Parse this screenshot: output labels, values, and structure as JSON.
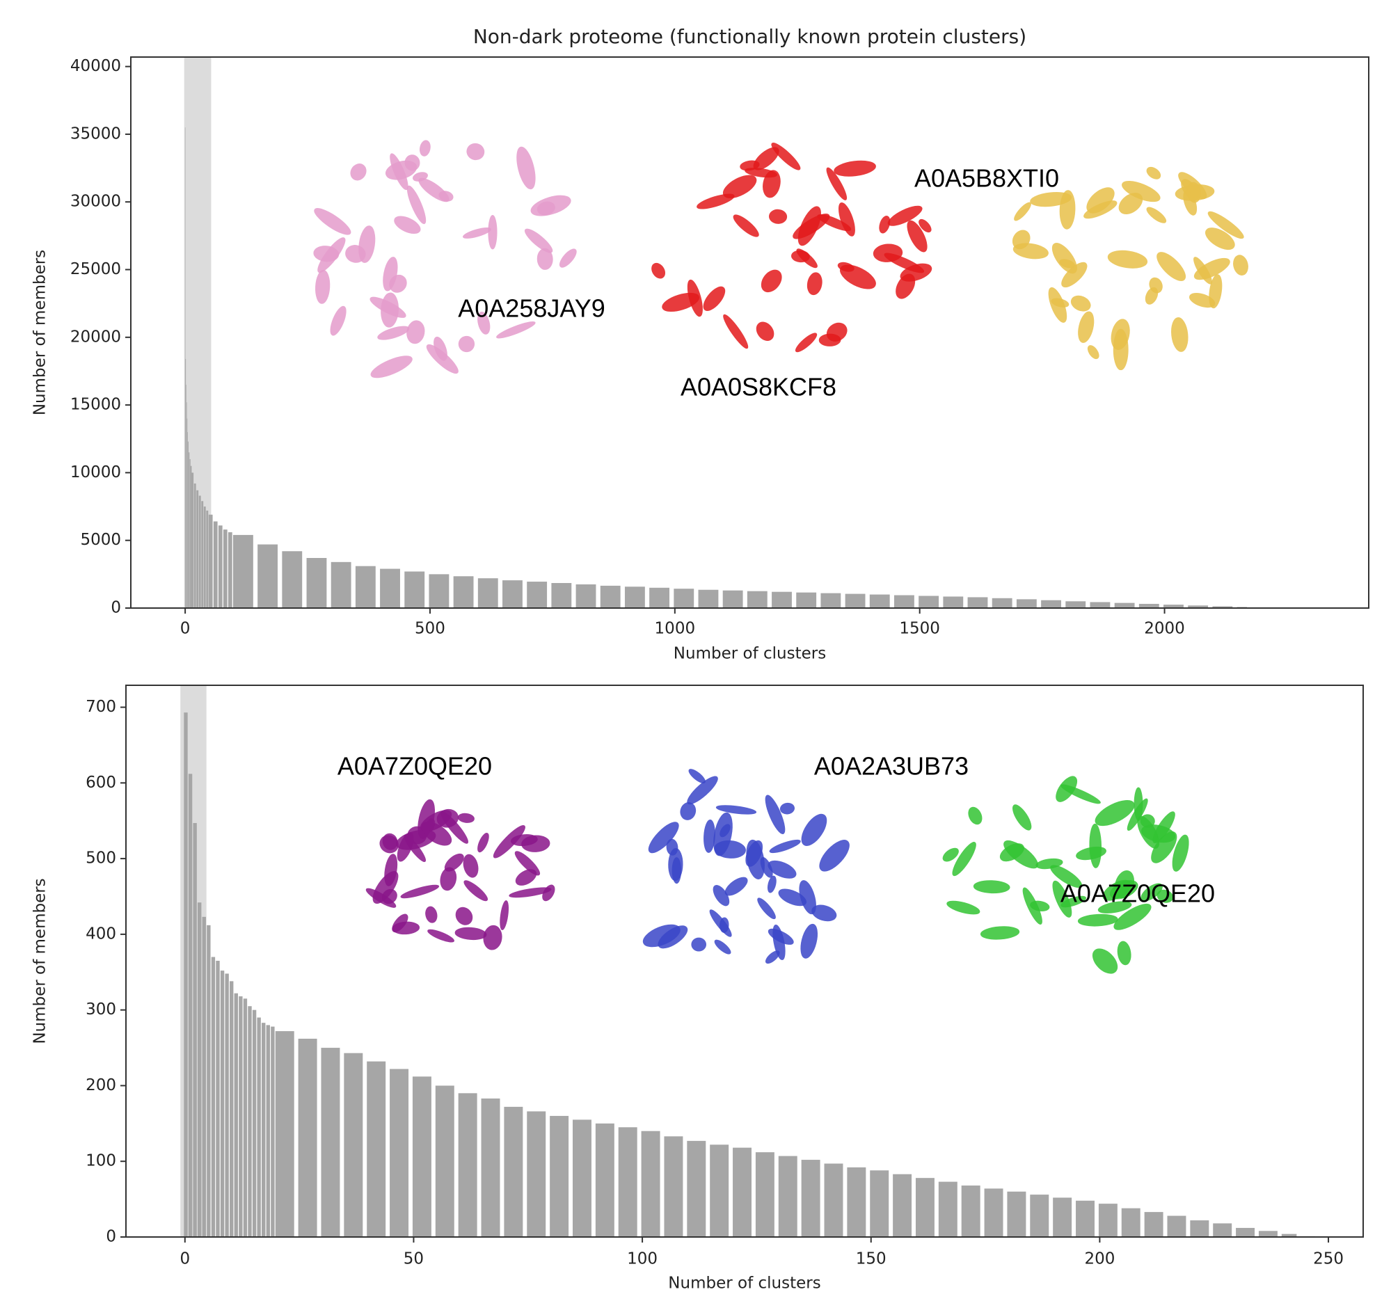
{
  "chart_data": [
    {
      "type": "bar",
      "title": "Non-dark proteome (functionally known protein clusters)",
      "x_label": "Number of clusters",
      "y_label": "Number of members",
      "color": "#a6a6a6",
      "highlight_span": [
        -2,
        53
      ],
      "x": [
        0,
        1,
        2,
        3,
        4,
        5,
        6,
        8,
        10,
        12,
        15,
        20,
        25,
        30,
        35,
        40,
        45,
        50,
        60,
        70,
        80,
        90,
        100,
        150,
        200,
        250,
        300,
        350,
        400,
        450,
        500,
        550,
        600,
        650,
        700,
        750,
        800,
        850,
        900,
        950,
        1000,
        1050,
        1100,
        1150,
        1200,
        1250,
        1300,
        1350,
        1400,
        1450,
        1500,
        1550,
        1600,
        1650,
        1700,
        1750,
        1800,
        1850,
        1900,
        1950,
        2000,
        2050,
        2100,
        2150,
        2175
      ],
      "values": [
        35500,
        18400,
        16500,
        15200,
        14000,
        13000,
        12300,
        11500,
        11000,
        10500,
        10000,
        9200,
        8700,
        8300,
        7900,
        7500,
        7200,
        6900,
        6400,
        6100,
        5800,
        5600,
        5400,
        4700,
        4200,
        3700,
        3400,
        3100,
        2900,
        2700,
        2500,
        2350,
        2200,
        2050,
        1950,
        1850,
        1750,
        1650,
        1580,
        1500,
        1430,
        1350,
        1300,
        1250,
        1200,
        1150,
        1100,
        1050,
        1000,
        950,
        900,
        850,
        800,
        730,
        650,
        580,
        500,
        440,
        380,
        310,
        250,
        190,
        130,
        80,
        40
      ],
      "xlim": [
        -111,
        2417
      ],
      "ylim": [
        0,
        40700
      ],
      "xticks": [
        0,
        500,
        1000,
        1500,
        2000
      ],
      "yticks": [
        0,
        5000,
        10000,
        15000,
        20000,
        25000,
        30000,
        35000,
        40000
      ],
      "annotations": [
        "A0A258JAY9",
        "A0A0S8KCF8",
        "A0A5B8XTI0"
      ]
    },
    {
      "type": "bar",
      "x_label": "Number of clusters",
      "y_label": "Number of members",
      "color": "#a6a6a6",
      "highlight_span": [
        -1,
        4.7
      ],
      "x": [
        0,
        1,
        2,
        3,
        4,
        5,
        6,
        7,
        8,
        9,
        10,
        11,
        12,
        13,
        14,
        15,
        16,
        17,
        18,
        19,
        20,
        25,
        30,
        35,
        40,
        45,
        50,
        55,
        60,
        65,
        70,
        75,
        80,
        85,
        90,
        95,
        100,
        105,
        110,
        115,
        120,
        125,
        130,
        135,
        140,
        145,
        150,
        155,
        160,
        165,
        170,
        175,
        180,
        185,
        190,
        195,
        200,
        205,
        210,
        215,
        220,
        225,
        230,
        235,
        240,
        244
      ],
      "values": [
        693,
        612,
        547,
        442,
        423,
        412,
        370,
        365,
        352,
        348,
        338,
        322,
        318,
        315,
        305,
        300,
        290,
        283,
        280,
        278,
        272,
        262,
        250,
        243,
        232,
        222,
        212,
        200,
        190,
        183,
        172,
        166,
        160,
        155,
        150,
        145,
        140,
        133,
        127,
        122,
        118,
        112,
        107,
        102,
        97,
        92,
        88,
        83,
        78,
        73,
        68,
        64,
        60,
        56,
        52,
        48,
        44,
        38,
        33,
        28,
        22,
        18,
        12,
        8,
        4,
        1
      ],
      "xlim": [
        -12.9,
        257.6
      ],
      "ylim": [
        0,
        729
      ],
      "xticks": [
        0,
        50,
        100,
        150,
        200,
        250
      ],
      "yticks": [
        0,
        100,
        200,
        300,
        400,
        500,
        600,
        700
      ],
      "annotations": [
        "A0A7Z0QE20",
        "A0A2A3UB73",
        "A0A7Z0QE20"
      ]
    }
  ]
}
